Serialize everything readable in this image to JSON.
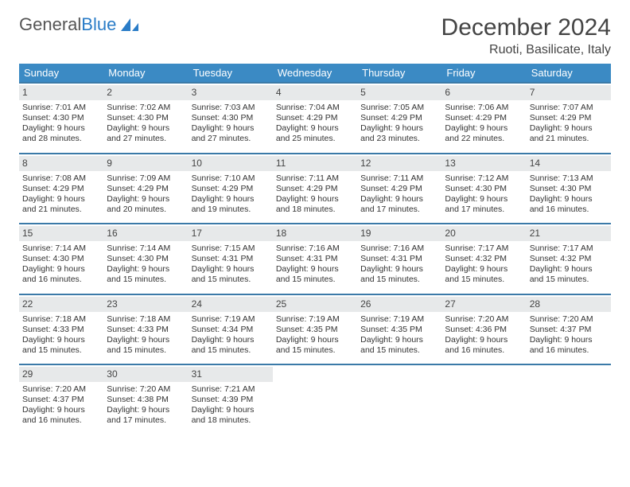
{
  "brand": {
    "part1": "General",
    "part2": "Blue"
  },
  "title": "December 2024",
  "subtitle": "Ruoti, Basilicate, Italy",
  "colors": {
    "header_bg": "#3b8ac4",
    "header_text": "#ffffff",
    "week_border": "#3b7aa8",
    "daynum_bg": "#e7e9ea",
    "text": "#333333",
    "brand_gray": "#555555",
    "brand_blue": "#2a7cc7"
  },
  "day_headers": [
    "Sunday",
    "Monday",
    "Tuesday",
    "Wednesday",
    "Thursday",
    "Friday",
    "Saturday"
  ],
  "weeks": [
    [
      {
        "n": "1",
        "sr": "Sunrise: 7:01 AM",
        "ss": "Sunset: 4:30 PM",
        "d1": "Daylight: 9 hours",
        "d2": "and 28 minutes."
      },
      {
        "n": "2",
        "sr": "Sunrise: 7:02 AM",
        "ss": "Sunset: 4:30 PM",
        "d1": "Daylight: 9 hours",
        "d2": "and 27 minutes."
      },
      {
        "n": "3",
        "sr": "Sunrise: 7:03 AM",
        "ss": "Sunset: 4:30 PM",
        "d1": "Daylight: 9 hours",
        "d2": "and 27 minutes."
      },
      {
        "n": "4",
        "sr": "Sunrise: 7:04 AM",
        "ss": "Sunset: 4:29 PM",
        "d1": "Daylight: 9 hours",
        "d2": "and 25 minutes."
      },
      {
        "n": "5",
        "sr": "Sunrise: 7:05 AM",
        "ss": "Sunset: 4:29 PM",
        "d1": "Daylight: 9 hours",
        "d2": "and 23 minutes."
      },
      {
        "n": "6",
        "sr": "Sunrise: 7:06 AM",
        "ss": "Sunset: 4:29 PM",
        "d1": "Daylight: 9 hours",
        "d2": "and 22 minutes."
      },
      {
        "n": "7",
        "sr": "Sunrise: 7:07 AM",
        "ss": "Sunset: 4:29 PM",
        "d1": "Daylight: 9 hours",
        "d2": "and 21 minutes."
      }
    ],
    [
      {
        "n": "8",
        "sr": "Sunrise: 7:08 AM",
        "ss": "Sunset: 4:29 PM",
        "d1": "Daylight: 9 hours",
        "d2": "and 21 minutes."
      },
      {
        "n": "9",
        "sr": "Sunrise: 7:09 AM",
        "ss": "Sunset: 4:29 PM",
        "d1": "Daylight: 9 hours",
        "d2": "and 20 minutes."
      },
      {
        "n": "10",
        "sr": "Sunrise: 7:10 AM",
        "ss": "Sunset: 4:29 PM",
        "d1": "Daylight: 9 hours",
        "d2": "and 19 minutes."
      },
      {
        "n": "11",
        "sr": "Sunrise: 7:11 AM",
        "ss": "Sunset: 4:29 PM",
        "d1": "Daylight: 9 hours",
        "d2": "and 18 minutes."
      },
      {
        "n": "12",
        "sr": "Sunrise: 7:11 AM",
        "ss": "Sunset: 4:29 PM",
        "d1": "Daylight: 9 hours",
        "d2": "and 17 minutes."
      },
      {
        "n": "13",
        "sr": "Sunrise: 7:12 AM",
        "ss": "Sunset: 4:30 PM",
        "d1": "Daylight: 9 hours",
        "d2": "and 17 minutes."
      },
      {
        "n": "14",
        "sr": "Sunrise: 7:13 AM",
        "ss": "Sunset: 4:30 PM",
        "d1": "Daylight: 9 hours",
        "d2": "and 16 minutes."
      }
    ],
    [
      {
        "n": "15",
        "sr": "Sunrise: 7:14 AM",
        "ss": "Sunset: 4:30 PM",
        "d1": "Daylight: 9 hours",
        "d2": "and 16 minutes."
      },
      {
        "n": "16",
        "sr": "Sunrise: 7:14 AM",
        "ss": "Sunset: 4:30 PM",
        "d1": "Daylight: 9 hours",
        "d2": "and 15 minutes."
      },
      {
        "n": "17",
        "sr": "Sunrise: 7:15 AM",
        "ss": "Sunset: 4:31 PM",
        "d1": "Daylight: 9 hours",
        "d2": "and 15 minutes."
      },
      {
        "n": "18",
        "sr": "Sunrise: 7:16 AM",
        "ss": "Sunset: 4:31 PM",
        "d1": "Daylight: 9 hours",
        "d2": "and 15 minutes."
      },
      {
        "n": "19",
        "sr": "Sunrise: 7:16 AM",
        "ss": "Sunset: 4:31 PM",
        "d1": "Daylight: 9 hours",
        "d2": "and 15 minutes."
      },
      {
        "n": "20",
        "sr": "Sunrise: 7:17 AM",
        "ss": "Sunset: 4:32 PM",
        "d1": "Daylight: 9 hours",
        "d2": "and 15 minutes."
      },
      {
        "n": "21",
        "sr": "Sunrise: 7:17 AM",
        "ss": "Sunset: 4:32 PM",
        "d1": "Daylight: 9 hours",
        "d2": "and 15 minutes."
      }
    ],
    [
      {
        "n": "22",
        "sr": "Sunrise: 7:18 AM",
        "ss": "Sunset: 4:33 PM",
        "d1": "Daylight: 9 hours",
        "d2": "and 15 minutes."
      },
      {
        "n": "23",
        "sr": "Sunrise: 7:18 AM",
        "ss": "Sunset: 4:33 PM",
        "d1": "Daylight: 9 hours",
        "d2": "and 15 minutes."
      },
      {
        "n": "24",
        "sr": "Sunrise: 7:19 AM",
        "ss": "Sunset: 4:34 PM",
        "d1": "Daylight: 9 hours",
        "d2": "and 15 minutes."
      },
      {
        "n": "25",
        "sr": "Sunrise: 7:19 AM",
        "ss": "Sunset: 4:35 PM",
        "d1": "Daylight: 9 hours",
        "d2": "and 15 minutes."
      },
      {
        "n": "26",
        "sr": "Sunrise: 7:19 AM",
        "ss": "Sunset: 4:35 PM",
        "d1": "Daylight: 9 hours",
        "d2": "and 15 minutes."
      },
      {
        "n": "27",
        "sr": "Sunrise: 7:20 AM",
        "ss": "Sunset: 4:36 PM",
        "d1": "Daylight: 9 hours",
        "d2": "and 16 minutes."
      },
      {
        "n": "28",
        "sr": "Sunrise: 7:20 AM",
        "ss": "Sunset: 4:37 PM",
        "d1": "Daylight: 9 hours",
        "d2": "and 16 minutes."
      }
    ],
    [
      {
        "n": "29",
        "sr": "Sunrise: 7:20 AM",
        "ss": "Sunset: 4:37 PM",
        "d1": "Daylight: 9 hours",
        "d2": "and 16 minutes."
      },
      {
        "n": "30",
        "sr": "Sunrise: 7:20 AM",
        "ss": "Sunset: 4:38 PM",
        "d1": "Daylight: 9 hours",
        "d2": "and 17 minutes."
      },
      {
        "n": "31",
        "sr": "Sunrise: 7:21 AM",
        "ss": "Sunset: 4:39 PM",
        "d1": "Daylight: 9 hours",
        "d2": "and 18 minutes."
      },
      null,
      null,
      null,
      null
    ]
  ]
}
